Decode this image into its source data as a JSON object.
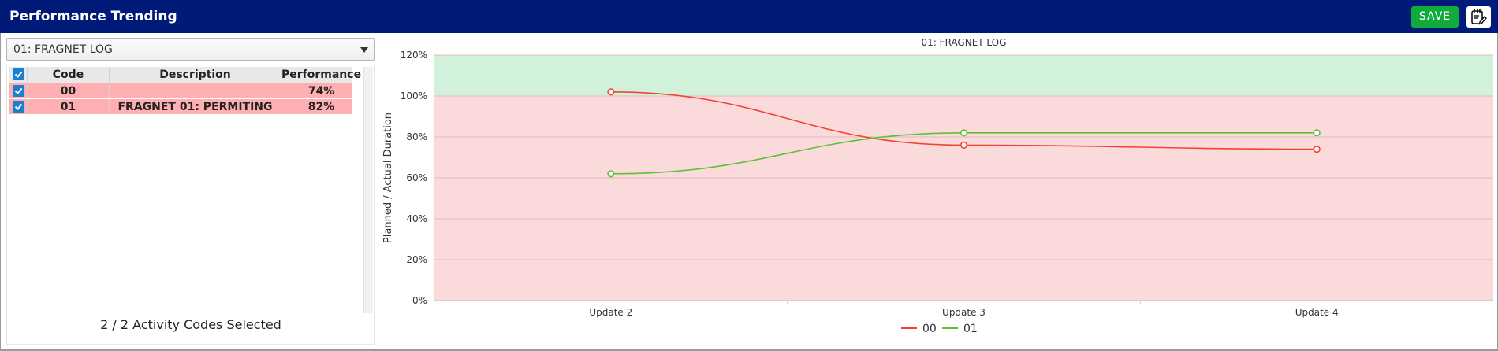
{
  "window": {
    "title": "Performance Trending",
    "save_label": "SAVE",
    "notes_icon": "notepad-edit-icon"
  },
  "selector": {
    "value": "01: FRAGNET LOG"
  },
  "table": {
    "columns": [
      "Code",
      "Description",
      "Performance"
    ],
    "rows": [
      {
        "checked": true,
        "code": "00",
        "description": "",
        "performance": "74%"
      },
      {
        "checked": true,
        "code": "01",
        "description": "FRAGNET 01: PERMITING",
        "performance": "82%"
      }
    ]
  },
  "status": {
    "selected_text": "2 / 2 Activity Codes Selected"
  },
  "colors": {
    "header": "#001a7a",
    "save": "#11aa3c",
    "row_bad": "#ffaeb1",
    "zone_good": "#d2f1da",
    "zone_bad": "#fbdadb",
    "series_00": "#f44336",
    "series_01": "#5cc234"
  },
  "chart_data": {
    "type": "line",
    "title": "01: FRAGNET LOG",
    "xlabel": "",
    "ylabel": "Planned / Actual Duration",
    "categories": [
      "Update 2",
      "Update 3",
      "Update 4"
    ],
    "y_ticks": [
      "0%",
      "20%",
      "40%",
      "60%",
      "80%",
      "100%",
      "120%"
    ],
    "ylim": [
      0,
      120
    ],
    "bands": [
      {
        "from": 100,
        "to": 120,
        "color": "#d2f1da"
      },
      {
        "from": 0,
        "to": 100,
        "color": "#fbdadb"
      }
    ],
    "series": [
      {
        "name": "00",
        "color": "#f44336",
        "values": [
          102,
          76,
          74
        ]
      },
      {
        "name": "01",
        "color": "#5cc234",
        "values": [
          62,
          82,
          82
        ]
      }
    ],
    "legend_position": "bottom"
  }
}
